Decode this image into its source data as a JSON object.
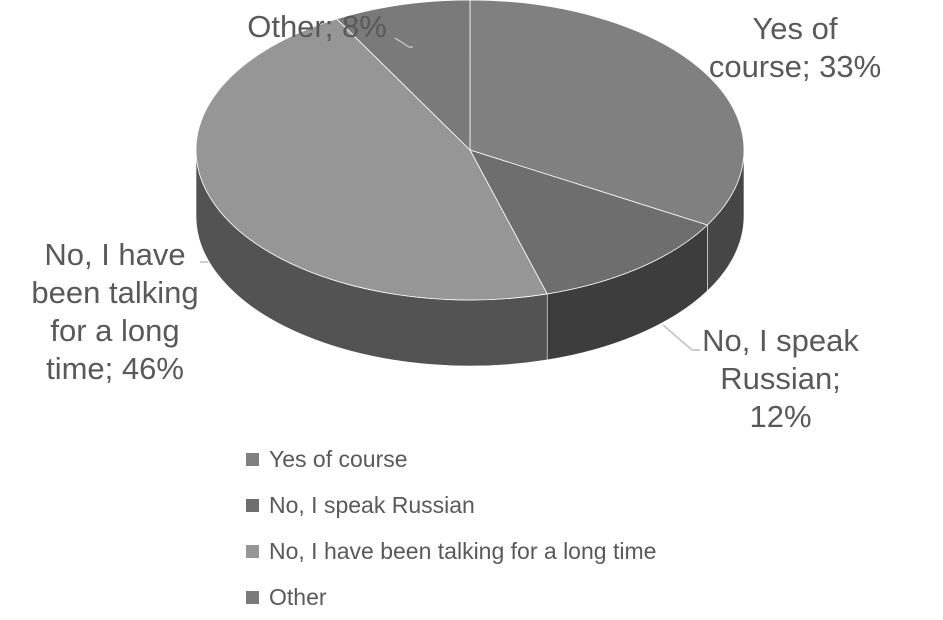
{
  "chart_data": {
    "type": "pie",
    "title": "",
    "slices": [
      {
        "label": "Yes of course",
        "value": 33,
        "color": "#808080"
      },
      {
        "label": "No, I speak Russian",
        "value": 12,
        "color": "#6e6e6e"
      },
      {
        "label": "No, I have been talking for a long time",
        "value": 46,
        "color": "#969696"
      },
      {
        "label": "Other",
        "value": 8,
        "color": "#7a7a7a"
      }
    ],
    "data_labels": [
      "Yes of course; 33%",
      "No, I speak Russian; 12%",
      "No, I have been talking for a long time; 46%",
      "Other; 8%"
    ],
    "legend_position": "bottom",
    "style": "3d"
  }
}
